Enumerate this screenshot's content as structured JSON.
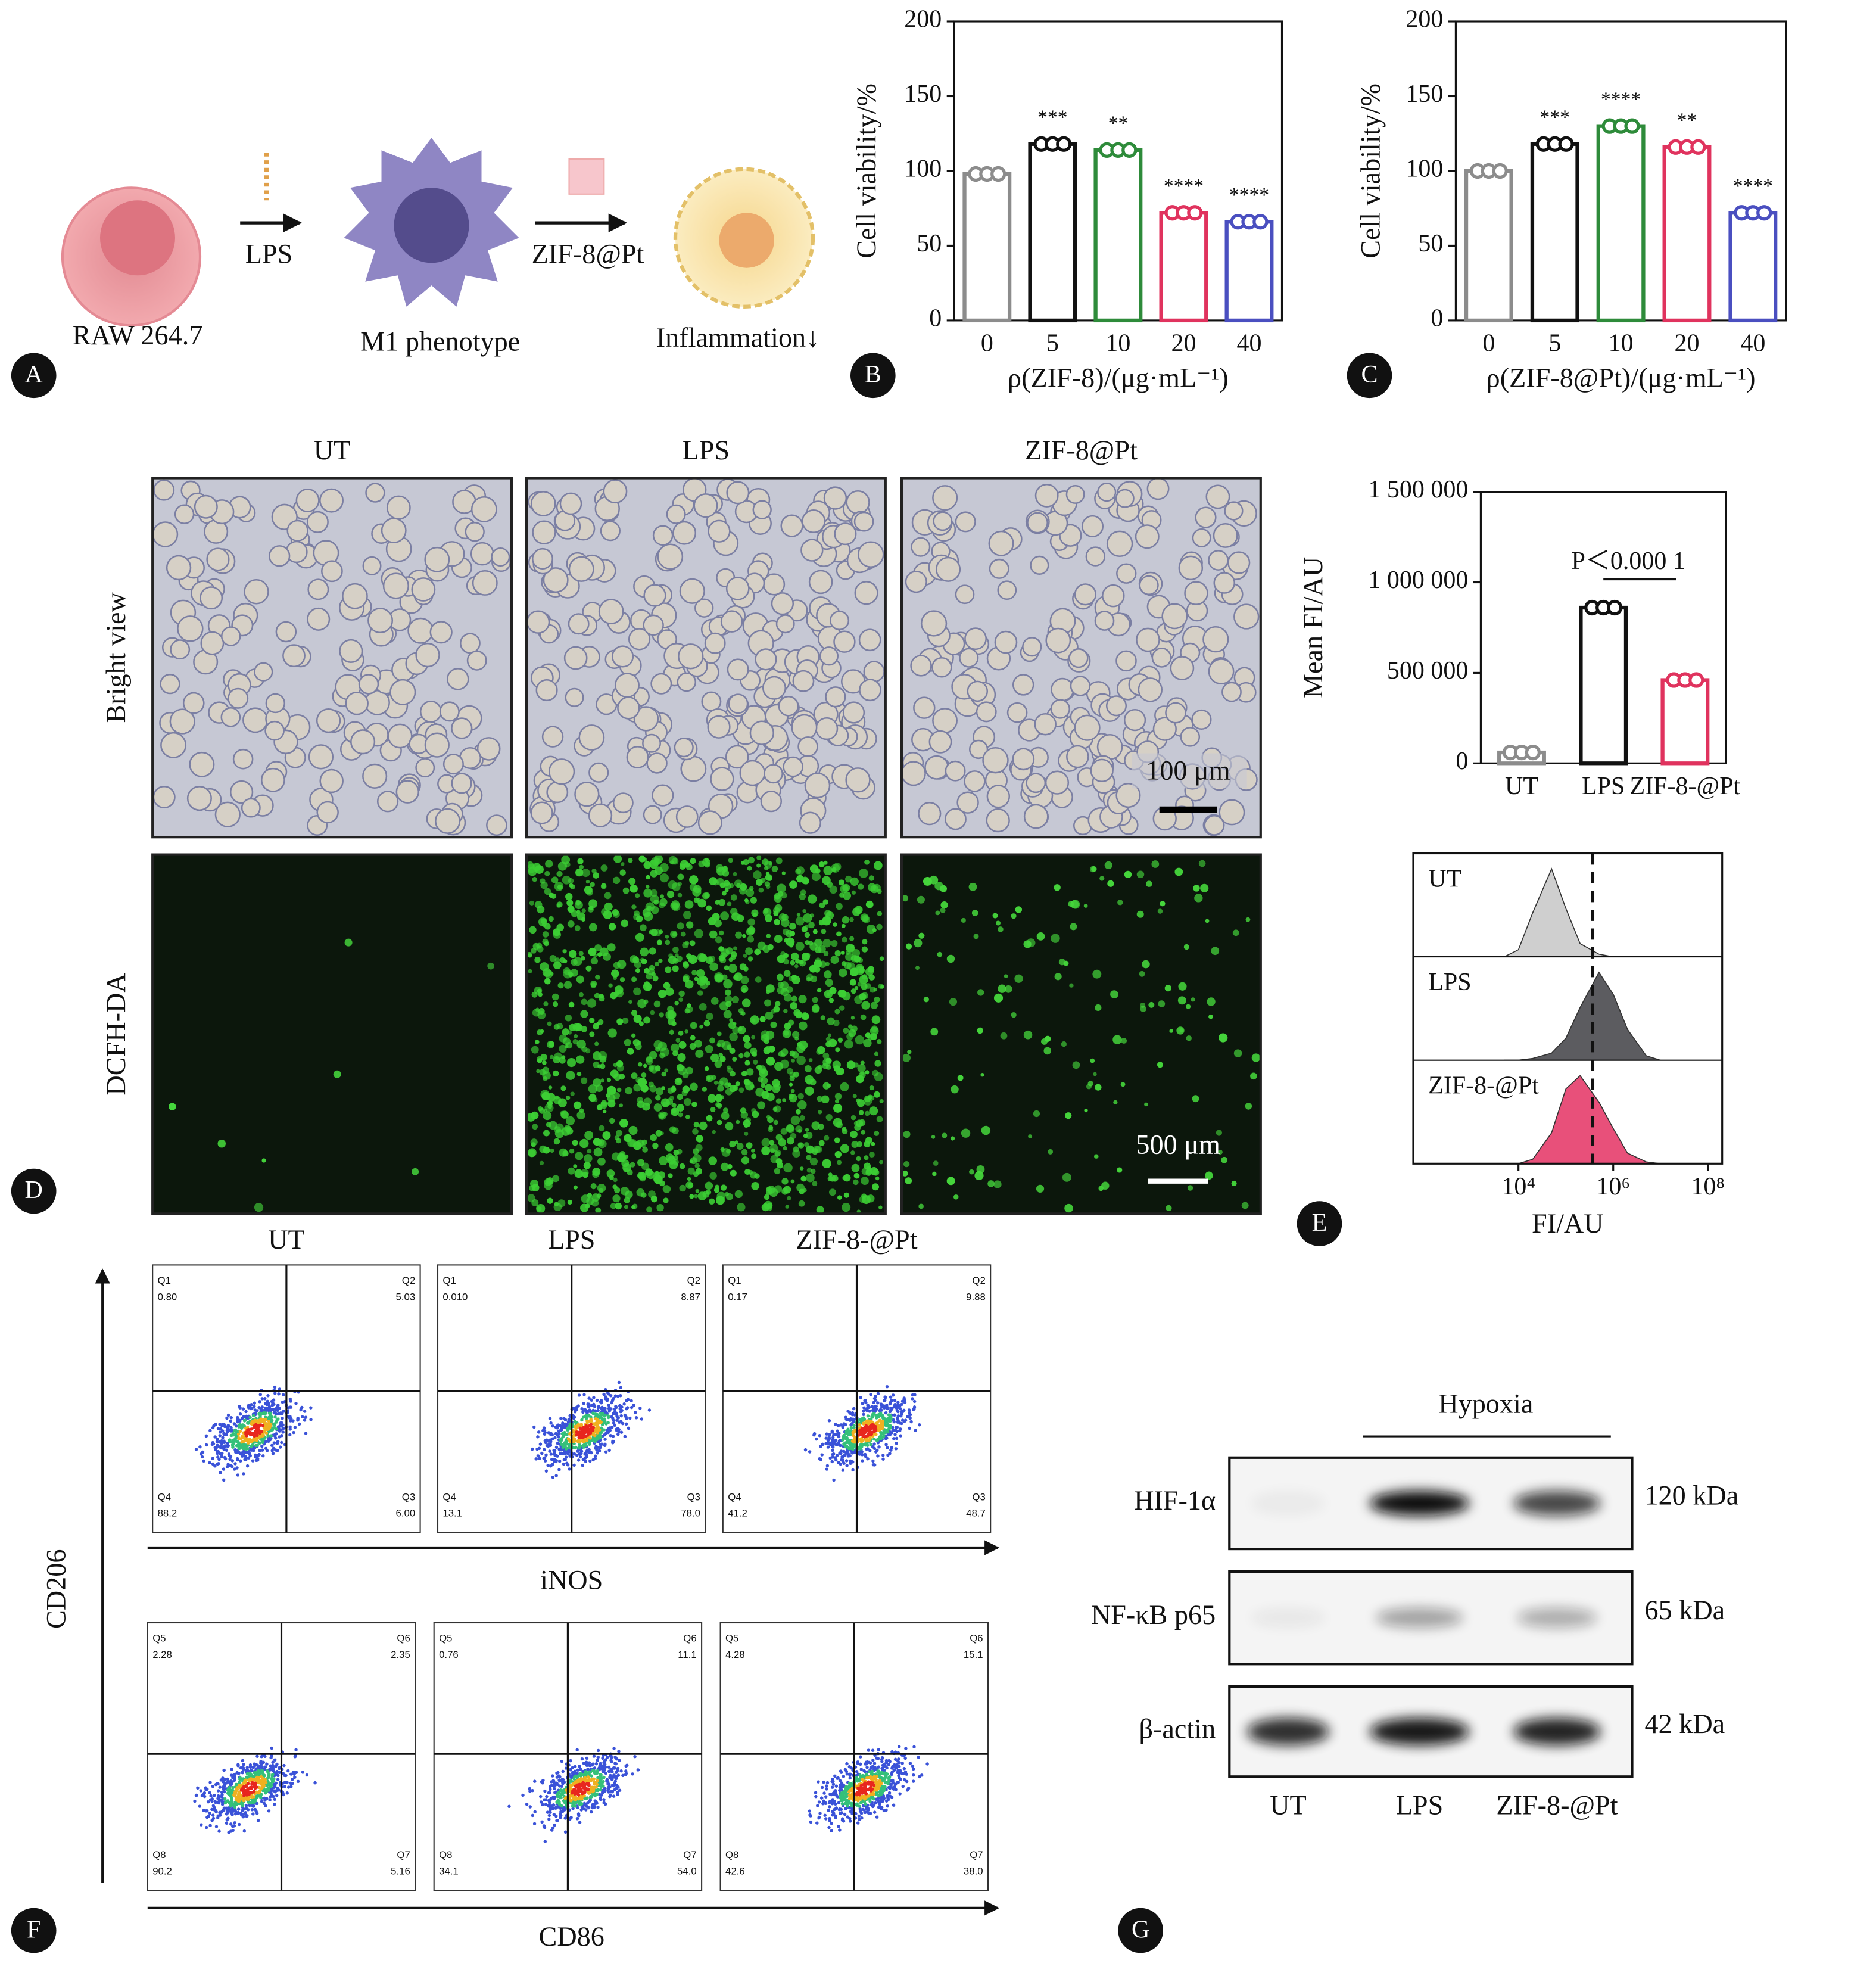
{
  "panel_labels": [
    "A",
    "B",
    "C",
    "D",
    "E",
    "F",
    "G"
  ],
  "scheme": {
    "cell": "RAW 264.7",
    "step1": "LPS",
    "phenotype": "M1 phenotype",
    "step2": "ZIF-8@Pt",
    "result": "Inflammation↓"
  },
  "chart_data": [
    {
      "type": "bar",
      "x_label": "ρ(ZIF-8)/(μg·mL⁻¹)",
      "y_label": "Cell viability/%",
      "categories": [
        "0",
        "5",
        "10",
        "20",
        "40"
      ],
      "values": [
        98,
        118,
        114,
        72,
        66
      ],
      "colors": [
        "#8c8c8c",
        "#111111",
        "#2e8b3a",
        "#e0335e",
        "#4a4fc0"
      ],
      "significance": [
        null,
        "***",
        "**",
        "****",
        "****"
      ],
      "ylim": [
        0,
        200
      ],
      "yticks": [
        0,
        50,
        100,
        150,
        200
      ]
    },
    {
      "type": "bar",
      "x_label": "ρ(ZIF-8@Pt)/(μg·mL⁻¹)",
      "y_label": "Cell viability/%",
      "categories": [
        "0",
        "5",
        "10",
        "20",
        "40"
      ],
      "values": [
        100,
        118,
        130,
        116,
        72
      ],
      "colors": [
        "#8c8c8c",
        "#111111",
        "#2e8b3a",
        "#e0335e",
        "#4a4fc0"
      ],
      "significance": [
        null,
        "***",
        "****",
        "**",
        "****"
      ],
      "ylim": [
        0,
        200
      ],
      "yticks": [
        0,
        50,
        100,
        150,
        200
      ]
    },
    {
      "type": "bar",
      "y_label": "Mean FI/AU",
      "annotation": "P＜0.000 1",
      "categories": [
        "UT",
        "LPS",
        "ZIF-8-@Pt"
      ],
      "values": [
        60000,
        860000,
        460000
      ],
      "colors": [
        "#8c8c8c",
        "#111111",
        "#e0335e"
      ],
      "ylim": [
        0,
        1500000
      ],
      "yticks": [
        0,
        {
          "value": 500000,
          "label": "500 000"
        },
        {
          "value": 1000000,
          "label": "1 000 000"
        },
        {
          "value": 1500000,
          "label": "1 500 000"
        }
      ]
    },
    {
      "type": "density",
      "x_label": "FI/AU",
      "log_x": true,
      "threshold": 370000,
      "x": [
        5000,
        10000,
        20000,
        50000,
        100000,
        200000,
        500000,
        1000000,
        2000000,
        5000000,
        10000000
      ],
      "series": [
        {
          "name": "UT",
          "color": "#cfcfcf",
          "values": [
            0,
            0.08,
            0.5,
            1.0,
            0.55,
            0.15,
            0.03,
            0,
            0,
            0,
            0
          ]
        },
        {
          "name": "LPS",
          "color": "#5c5c60",
          "values": [
            0,
            0,
            0.02,
            0.08,
            0.25,
            0.6,
            1.0,
            0.75,
            0.35,
            0.05,
            0
          ]
        },
        {
          "name": "ZIF-8-@Pt",
          "color": "#e8507a",
          "values": [
            0,
            0,
            0.05,
            0.35,
            0.85,
            1.0,
            0.7,
            0.4,
            0.12,
            0.02,
            0
          ]
        }
      ],
      "xlim": [
        60,
        200000000
      ],
      "xticks": [
        {
          "value": 10000,
          "label": "10⁴"
        },
        {
          "value": 1000000,
          "label": "10⁶"
        },
        {
          "value": 100000000,
          "label": "10⁸"
        }
      ]
    }
  ],
  "microscopy": {
    "columns": [
      "UT",
      "LPS",
      "ZIF-8@Pt"
    ],
    "rows": [
      "Bright view",
      "DCFH-DA"
    ],
    "scale_bars": [
      "100 μm",
      "500 μm"
    ]
  },
  "flow": {
    "columns": [
      "UT",
      "LPS",
      "ZIF-8-@Pt"
    ],
    "y_label": "CD206",
    "rows": [
      {
        "x_label": "iNOS",
        "plots": [
          {
            "quadrants": [
              {
                "name": "Q1",
                "value": "0.80"
              },
              {
                "name": "Q2",
                "value": "5.03"
              },
              {
                "name": "Q4",
                "value": "88.2"
              },
              {
                "name": "Q3",
                "value": "6.00"
              }
            ]
          },
          {
            "quadrants": [
              {
                "name": "Q1",
                "value": "0.010"
              },
              {
                "name": "Q2",
                "value": "8.87"
              },
              {
                "name": "Q4",
                "value": "13.1"
              },
              {
                "name": "Q3",
                "value": "78.0"
              }
            ]
          },
          {
            "quadrants": [
              {
                "name": "Q1",
                "value": "0.17"
              },
              {
                "name": "Q2",
                "value": "9.88"
              },
              {
                "name": "Q4",
                "value": "41.2"
              },
              {
                "name": "Q3",
                "value": "48.7"
              }
            ]
          }
        ]
      },
      {
        "x_label": "CD86",
        "plots": [
          {
            "quadrants": [
              {
                "name": "Q5",
                "value": "2.28"
              },
              {
                "name": "Q6",
                "value": "2.35"
              },
              {
                "name": "Q8",
                "value": "90.2"
              },
              {
                "name": "Q7",
                "value": "5.16"
              }
            ]
          },
          {
            "quadrants": [
              {
                "name": "Q5",
                "value": "0.76"
              },
              {
                "name": "Q6",
                "value": "11.1"
              },
              {
                "name": "Q8",
                "value": "34.1"
              },
              {
                "name": "Q7",
                "value": "54.0"
              }
            ]
          },
          {
            "quadrants": [
              {
                "name": "Q5",
                "value": "4.28"
              },
              {
                "name": "Q6",
                "value": "15.1"
              },
              {
                "name": "Q8",
                "value": "42.6"
              },
              {
                "name": "Q7",
                "value": "38.0"
              }
            ]
          }
        ]
      }
    ]
  },
  "blot": {
    "group": "Hypoxia",
    "lanes": [
      "UT",
      "LPS",
      "ZIF-8-@Pt"
    ],
    "proteins": [
      {
        "name": "HIF-1α",
        "size": "120 kDa"
      },
      {
        "name": "NF-κB p65",
        "size": "65 kDa"
      },
      {
        "name": "β-actin",
        "size": "42 kDa"
      }
    ]
  }
}
